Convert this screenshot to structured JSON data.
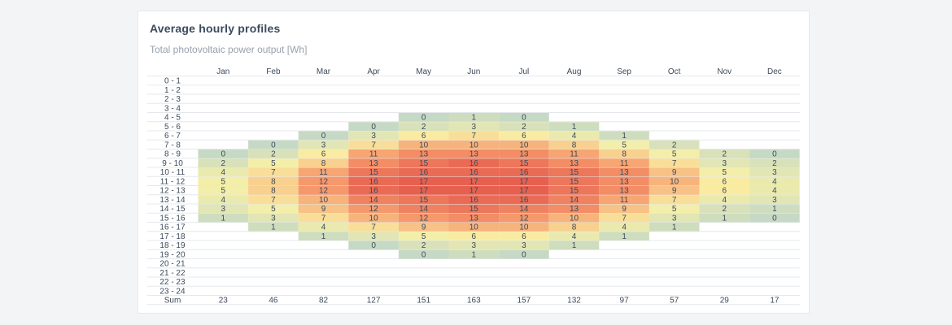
{
  "card": {
    "title": "Average hourly profiles",
    "subtitle": "Total photovoltaic power output [Wh]"
  },
  "chart_data": {
    "type": "heatmap",
    "title": "Average hourly profiles",
    "subtitle": "Total photovoltaic power output [Wh]",
    "columns": [
      "Jan",
      "Feb",
      "Mar",
      "Apr",
      "May",
      "Jun",
      "Jul",
      "Aug",
      "Sep",
      "Oct",
      "Nov",
      "Dec"
    ],
    "rows": [
      "0 - 1",
      "1 - 2",
      "2 - 3",
      "3 - 4",
      "4 - 5",
      "5 - 6",
      "6 - 7",
      "7 - 8",
      "8 - 9",
      "9 - 10",
      "10 - 11",
      "11 - 12",
      "12 - 13",
      "13 - 14",
      "14 - 15",
      "15 - 16",
      "16 - 17",
      "17 - 18",
      "18 - 19",
      "19 - 20",
      "20 - 21",
      "21 - 22",
      "22 - 23",
      "23 - 24"
    ],
    "values": [
      [
        null,
        null,
        null,
        null,
        null,
        null,
        null,
        null,
        null,
        null,
        null,
        null
      ],
      [
        null,
        null,
        null,
        null,
        null,
        null,
        null,
        null,
        null,
        null,
        null,
        null
      ],
      [
        null,
        null,
        null,
        null,
        null,
        null,
        null,
        null,
        null,
        null,
        null,
        null
      ],
      [
        null,
        null,
        null,
        null,
        null,
        null,
        null,
        null,
        null,
        null,
        null,
        null
      ],
      [
        null,
        null,
        null,
        null,
        0,
        1,
        0,
        null,
        null,
        null,
        null,
        null
      ],
      [
        null,
        null,
        null,
        0,
        2,
        3,
        2,
        1,
        null,
        null,
        null,
        null
      ],
      [
        null,
        null,
        0,
        3,
        6,
        7,
        6,
        4,
        1,
        null,
        null,
        null
      ],
      [
        null,
        0,
        3,
        7,
        10,
        10,
        10,
        8,
        5,
        2,
        null,
        null
      ],
      [
        0,
        2,
        6,
        11,
        13,
        13,
        13,
        11,
        8,
        5,
        2,
        0
      ],
      [
        2,
        5,
        8,
        13,
        15,
        16,
        15,
        13,
        11,
        7,
        3,
        2
      ],
      [
        4,
        7,
        11,
        15,
        16,
        16,
        16,
        15,
        13,
        9,
        5,
        3
      ],
      [
        5,
        8,
        12,
        16,
        17,
        17,
        17,
        15,
        13,
        10,
        6,
        4
      ],
      [
        5,
        8,
        12,
        16,
        17,
        17,
        17,
        15,
        13,
        9,
        6,
        4
      ],
      [
        4,
        7,
        10,
        14,
        15,
        16,
        16,
        14,
        11,
        7,
        4,
        3
      ],
      [
        3,
        5,
        9,
        12,
        14,
        15,
        14,
        13,
        9,
        5,
        2,
        1
      ],
      [
        1,
        3,
        7,
        10,
        12,
        13,
        12,
        10,
        7,
        3,
        1,
        0
      ],
      [
        null,
        1,
        4,
        7,
        9,
        10,
        10,
        8,
        4,
        1,
        null,
        null
      ],
      [
        null,
        null,
        1,
        3,
        5,
        6,
        6,
        4,
        1,
        null,
        null,
        null
      ],
      [
        null,
        null,
        null,
        0,
        2,
        3,
        3,
        1,
        null,
        null,
        null,
        null
      ],
      [
        null,
        null,
        null,
        null,
        0,
        1,
        0,
        null,
        null,
        null,
        null,
        null
      ],
      [
        null,
        null,
        null,
        null,
        null,
        null,
        null,
        null,
        null,
        null,
        null,
        null
      ],
      [
        null,
        null,
        null,
        null,
        null,
        null,
        null,
        null,
        null,
        null,
        null,
        null
      ],
      [
        null,
        null,
        null,
        null,
        null,
        null,
        null,
        null,
        null,
        null,
        null,
        null
      ],
      [
        null,
        null,
        null,
        null,
        null,
        null,
        null,
        null,
        null,
        null,
        null,
        null
      ]
    ],
    "sum_label": "Sum",
    "sums": [
      23,
      46,
      82,
      127,
      151,
      163,
      157,
      132,
      97,
      57,
      29,
      17
    ],
    "color_scale": {
      "min": 0,
      "max": 17,
      "stops": [
        "#c6d9c4",
        "#f9f1a5",
        "#f7a070",
        "#e7604f"
      ]
    },
    "text_color": "#3e4a5a",
    "grid_color": "#e4e8ec"
  }
}
